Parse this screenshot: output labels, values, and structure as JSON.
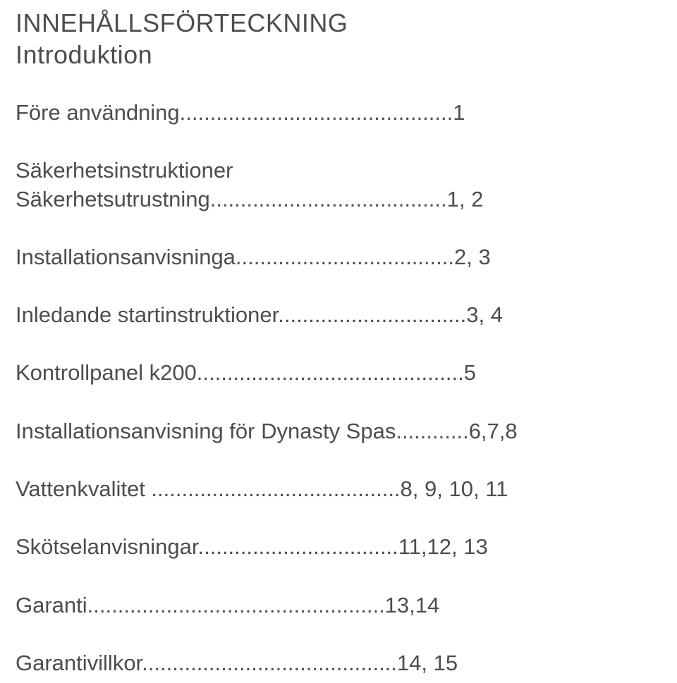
{
  "heading": {
    "line1": "INNEHÅLLSFÖRTECKNING",
    "line2": "Introduktion"
  },
  "entries": [
    {
      "text": "Före användning.............................................1"
    },
    {
      "text": "Säkerhetsinstruktioner",
      "tight": true
    },
    {
      "text": "Säkerhetsutrustning.......................................1, 2"
    },
    {
      "text": "Installationsanvisninga....................................2, 3"
    },
    {
      "text": "Inledande startinstruktioner...............................3, 4"
    },
    {
      "text": "Kontrollpanel k200............................................5"
    },
    {
      "text": "Installationsanvisning för Dynasty Spas............6,7,8"
    },
    {
      "text": "Vattenkvalitet .........................................8, 9, 10, 11"
    },
    {
      "text": "Skötselanvisningar.................................11,12, 13"
    },
    {
      "text": "Garanti.................................................13,14"
    },
    {
      "text": "Garantivillkor..........................................14, 15"
    }
  ],
  "colors": {
    "text": "#4d4d4f",
    "background": "#ffffff"
  },
  "typography": {
    "heading_fontsize": 36,
    "entry_fontsize": 31,
    "font_family": "Arial"
  }
}
